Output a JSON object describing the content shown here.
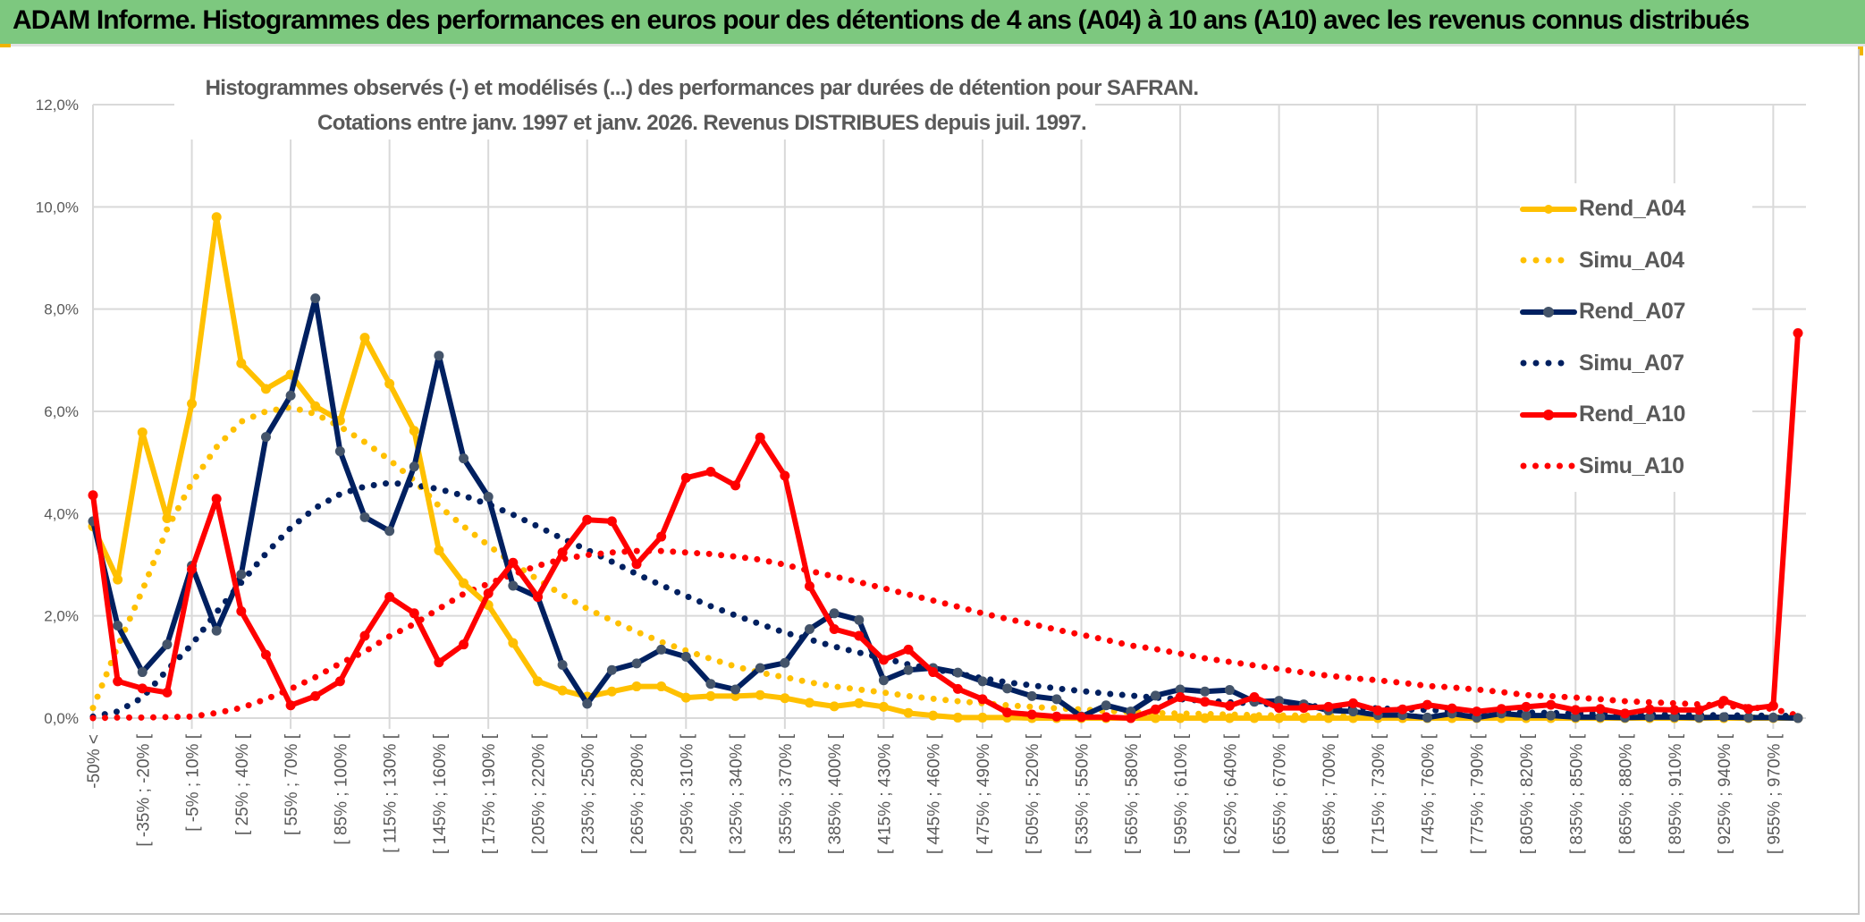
{
  "header": {
    "title": "ADAM Informe. Histogrammes des performances en euros pour des détentions de 4 ans (A04) à 10 ans (A10) avec les revenus connus distribués"
  },
  "chart_data": {
    "type": "line",
    "title_lines": [
      "Histogrammes observés (-) et modélisés (...) des performances par durées de détention pour SAFRAN.",
      "Cotations entre janv. 1997 et janv. 2026. Revenus DISTRIBUES depuis juil. 1997."
    ],
    "xlabel": "",
    "ylabel": "",
    "ylim": [
      0,
      12
    ],
    "y_unit": "%",
    "y_ticks": [
      "0,0%",
      "2,0%",
      "4,0%",
      "6,0%",
      "8,0%",
      "10,0%",
      "12,0%"
    ],
    "tick_labels_every": 2,
    "tick_labels": [
      "-50% <",
      "[ -35% ; -20% [",
      "[ -5% ; 10% [",
      "[ 25% ; 40% [",
      "[ 55% ; 70% [",
      "[ 85% ; 100% [",
      "[ 115% ; 130% [",
      "[ 145% ; 160% [",
      "[ 175% ; 190% [",
      "[ 205% ; 220% [",
      "[ 235% ; 250% [",
      "[ 265% ; 280% [",
      "[ 295% ; 310% [",
      "[ 325% ; 340% [",
      "[ 355% ; 370% [",
      "[ 385% ; 400% [",
      "[ 415% ; 430% [",
      "[ 445% ; 460% [",
      "[ 475% ; 490% [",
      "[ 505% ; 520% [",
      "[ 535% ; 550% [",
      "[ 565% ; 580% [",
      "[ 595% ; 610% [",
      "[ 625% ; 640% [",
      "[ 655% ; 670% [",
      "[ 685% ; 700% [",
      "[ 715% ; 730% [",
      "[ 745% ; 760% [",
      "[ 775% ; 790% [",
      "[ 805% ; 820% [",
      "[ 835% ; 850% [",
      "[ 865% ; 880% [",
      "[ 895% ; 910% [",
      "[ 925% ; 940% [",
      "[ 955% ; 970% ["
    ],
    "grid": true,
    "legend_position": "right",
    "series": [
      {
        "name": "Rend_A04",
        "style": "solid-markers",
        "color": "#FFC000",
        "marker_color": "#FFC000",
        "values": [
          3.75,
          2.71,
          5.59,
          3.91,
          6.15,
          9.8,
          6.94,
          6.44,
          6.72,
          6.1,
          5.82,
          7.44,
          6.54,
          5.62,
          3.28,
          2.64,
          2.21,
          1.47,
          0.72,
          0.54,
          0.42,
          0.52,
          0.62,
          0.62,
          0.4,
          0.43,
          0.43,
          0.45,
          0.39,
          0.3,
          0.23,
          0.29,
          0.22,
          0.1,
          0.05,
          0.01,
          0.01,
          0.01,
          0,
          0,
          0,
          0,
          0,
          0,
          0,
          0,
          0,
          0,
          0,
          0,
          0,
          0,
          0,
          0,
          0,
          0,
          0,
          0,
          0,
          0,
          0,
          0,
          0,
          0,
          0,
          0,
          0,
          0,
          0,
          0
        ]
      },
      {
        "name": "Simu_A04",
        "style": "dotted",
        "color": "#FFC000",
        "values": [
          0.2,
          1.4,
          2.5,
          3.7,
          4.6,
          5.3,
          5.8,
          6.0,
          6.08,
          5.95,
          5.7,
          5.4,
          5.05,
          4.65,
          4.15,
          3.75,
          3.38,
          3.03,
          2.71,
          2.41,
          2.14,
          1.91,
          1.69,
          1.49,
          1.32,
          1.16,
          1.01,
          0.89,
          0.8,
          0.7,
          0.62,
          0.56,
          0.5,
          0.43,
          0.38,
          0.33,
          0.29,
          0.25,
          0.22,
          0.19,
          0.17,
          0.14,
          0.12,
          0.1,
          0.09,
          0.08,
          0.07,
          0.06,
          0.05,
          0.05,
          0.04,
          0.04,
          0.03,
          0.03,
          0.03,
          0.02,
          0.02,
          0.02,
          0.02,
          0.01,
          0.01,
          0.01,
          0.01,
          0.01,
          0.01,
          0.01,
          0.01,
          0.01,
          0.01,
          0.01
        ]
      },
      {
        "name": "Rend_A07",
        "style": "solid-markers",
        "color": "#002060",
        "marker_color": "#44546A",
        "values": [
          3.85,
          1.81,
          0.9,
          1.44,
          2.98,
          1.71,
          2.81,
          5.5,
          6.31,
          8.21,
          5.22,
          3.93,
          3.66,
          4.92,
          7.09,
          5.08,
          4.33,
          2.59,
          2.37,
          1.04,
          0.28,
          0.94,
          1.07,
          1.34,
          1.2,
          0.67,
          0.56,
          0.98,
          1.08,
          1.74,
          2.05,
          1.92,
          0.74,
          0.94,
          0.98,
          0.89,
          0.72,
          0.58,
          0.43,
          0.37,
          0.03,
          0.25,
          0.13,
          0.44,
          0.56,
          0.52,
          0.55,
          0.32,
          0.34,
          0.27,
          0.15,
          0.13,
          0.06,
          0.06,
          0.01,
          0.09,
          0.01,
          0.09,
          0.05,
          0.05,
          0.02,
          0.02,
          0.01,
          0.02,
          0.02,
          0.01,
          0.02,
          0.01,
          0.01,
          0.0
        ]
      },
      {
        "name": "Simu_A07",
        "style": "dotted",
        "color": "#002060",
        "values": [
          0.03,
          0.13,
          0.4,
          0.94,
          1.44,
          2.07,
          2.65,
          3.22,
          3.72,
          4.11,
          4.38,
          4.53,
          4.6,
          4.56,
          4.48,
          4.35,
          4.18,
          3.98,
          3.75,
          3.51,
          3.29,
          3.06,
          2.82,
          2.6,
          2.39,
          2.19,
          2.01,
          1.84,
          1.67,
          1.54,
          1.4,
          1.28,
          1.17,
          1.05,
          0.96,
          0.87,
          0.78,
          0.7,
          0.64,
          0.58,
          0.53,
          0.48,
          0.44,
          0.4,
          0.37,
          0.34,
          0.31,
          0.29,
          0.26,
          0.24,
          0.22,
          0.2,
          0.19,
          0.17,
          0.16,
          0.14,
          0.13,
          0.12,
          0.11,
          0.1,
          0.09,
          0.085,
          0.08,
          0.07,
          0.065,
          0.06,
          0.055,
          0.05,
          0.045,
          0.04
        ]
      },
      {
        "name": "Rend_A10",
        "style": "solid-markers",
        "color": "#FF0000",
        "marker_color": "#FF0000",
        "values": [
          4.36,
          0.72,
          0.58,
          0.5,
          2.91,
          4.29,
          2.09,
          1.24,
          0.25,
          0.43,
          0.72,
          1.61,
          2.37,
          2.05,
          1.09,
          1.44,
          2.44,
          3.04,
          2.37,
          3.24,
          3.88,
          3.85,
          3.01,
          3.55,
          4.7,
          4.82,
          4.55,
          5.49,
          4.74,
          2.58,
          1.74,
          1.61,
          1.14,
          1.34,
          0.9,
          0.57,
          0.37,
          0.11,
          0.07,
          0.03,
          0.02,
          0.02,
          0.0,
          0.17,
          0.41,
          0.32,
          0.24,
          0.41,
          0.2,
          0.2,
          0.22,
          0.29,
          0.15,
          0.17,
          0.26,
          0.19,
          0.13,
          0.18,
          0.22,
          0.26,
          0.16,
          0.18,
          0.09,
          0.17,
          0.16,
          0.16,
          0.34,
          0.18,
          0.24,
          7.53
        ]
      },
      {
        "name": "Simu_A10",
        "style": "dotted",
        "color": "#FF0000",
        "values": [
          0.0,
          0.01,
          0.01,
          0.02,
          0.03,
          0.1,
          0.2,
          0.37,
          0.57,
          0.8,
          1.07,
          1.3,
          1.6,
          1.84,
          2.14,
          2.43,
          2.63,
          2.81,
          2.98,
          3.11,
          3.19,
          3.24,
          3.27,
          3.27,
          3.24,
          3.21,
          3.16,
          3.1,
          3.0,
          2.88,
          2.77,
          2.66,
          2.54,
          2.42,
          2.3,
          2.18,
          2.05,
          1.94,
          1.84,
          1.73,
          1.63,
          1.53,
          1.42,
          1.35,
          1.26,
          1.17,
          1.1,
          1.03,
          0.96,
          0.89,
          0.83,
          0.78,
          0.74,
          0.69,
          0.63,
          0.6,
          0.56,
          0.51,
          0.45,
          0.43,
          0.4,
          0.37,
          0.33,
          0.31,
          0.29,
          0.27,
          0.24,
          0.21,
          0.18,
          0.05
        ]
      }
    ]
  }
}
